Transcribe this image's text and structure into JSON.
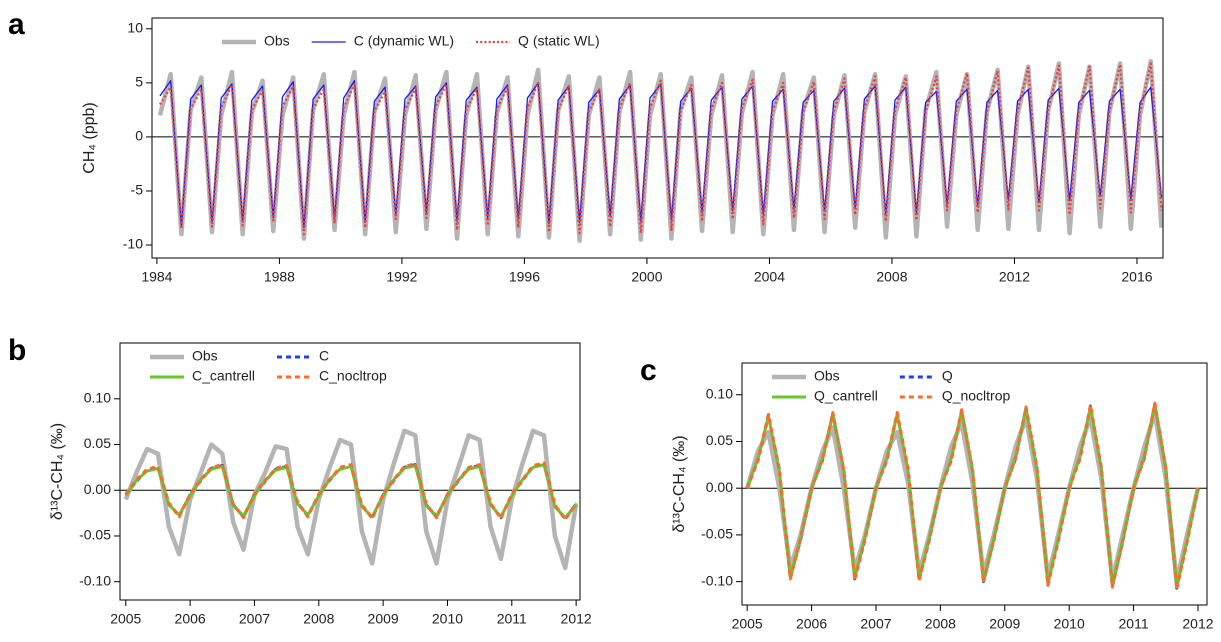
{
  "chart_data": [
    {
      "type": "line",
      "panel_label": "a",
      "ylabel": "CH₄ (ppb)",
      "xlim": [
        1983.84,
        2016.85
      ],
      "xticks": [
        1984,
        1988,
        1992,
        1996,
        2000,
        2004,
        2008,
        2012,
        2016
      ],
      "ylim": [
        -11.2,
        11
      ],
      "yticks": [
        -10,
        -5,
        0,
        5,
        10
      ],
      "legend": {
        "loc": "upper left",
        "ncol": 3
      },
      "x": [
        1984.1,
        1984.45,
        1984.8,
        1985.1,
        1985.45,
        1985.8,
        1986.1,
        1986.45,
        1986.8,
        1987.1,
        1987.45,
        1987.8,
        1988.1,
        1988.45,
        1988.8,
        1989.1,
        1989.45,
        1989.8,
        1990.1,
        1990.45,
        1990.8,
        1991.1,
        1991.45,
        1991.8,
        1992.1,
        1992.45,
        1992.8,
        1993.1,
        1993.45,
        1993.8,
        1994.1,
        1994.45,
        1994.8,
        1995.1,
        1995.45,
        1995.8,
        1996.1,
        1996.45,
        1996.8,
        1997.1,
        1997.45,
        1997.8,
        1998.1,
        1998.45,
        1998.8,
        1999.1,
        1999.45,
        1999.8,
        2000.1,
        2000.45,
        2000.8,
        2001.1,
        2001.45,
        2001.8,
        2002.1,
        2002.45,
        2002.8,
        2003.1,
        2003.45,
        2003.8,
        2004.1,
        2004.45,
        2004.8,
        2005.1,
        2005.45,
        2005.8,
        2006.1,
        2006.45,
        2006.8,
        2007.1,
        2007.45,
        2007.8,
        2008.1,
        2008.45,
        2008.8,
        2009.1,
        2009.45,
        2009.8,
        2010.1,
        2010.45,
        2010.8,
        2011.1,
        2011.45,
        2011.8,
        2012.1,
        2012.45,
        2012.8,
        2013.1,
        2013.45,
        2013.8,
        2014.1,
        2014.45,
        2014.8,
        2015.1,
        2015.45,
        2015.8,
        2016.1,
        2016.45,
        2016.8
      ],
      "series": [
        {
          "name": "Obs",
          "color": "#b4b4b4",
          "style": "thick",
          "values": [
            2,
            5.8,
            -9,
            2.5,
            5.5,
            -8.8,
            2,
            6,
            -9,
            2.2,
            5.2,
            -8.7,
            2,
            5.5,
            -9.4,
            2.5,
            5.8,
            -8.6,
            2,
            6,
            -9,
            2.3,
            5.4,
            -8.8,
            2,
            5.7,
            -8.5,
            2.5,
            6,
            -9.4,
            2,
            5.8,
            -9,
            2.2,
            5.5,
            -9.2,
            2,
            6.2,
            -9.3,
            2.4,
            5.6,
            -9.6,
            2,
            5.5,
            -9,
            2.3,
            6,
            -9.5,
            2,
            5.8,
            -9.4,
            2.5,
            5.5,
            -8.7,
            2,
            5.7,
            -8.8,
            2.2,
            6,
            -9,
            2,
            5.8,
            -8.6,
            2.4,
            5.5,
            -8.8,
            2,
            5.7,
            -8.4,
            2.3,
            5.8,
            -9.3,
            2,
            5.6,
            -9.2,
            2.5,
            6,
            -8.3,
            2,
            5.8,
            -8.6,
            2.3,
            6.2,
            -8.5,
            2,
            6.5,
            -8.6,
            2.4,
            6.8,
            -8.9,
            2,
            6.5,
            -8.3,
            2.3,
            6.8,
            -8.5,
            2,
            7,
            -8.4
          ]
        },
        {
          "name": "C (dynamic WL)",
          "color": "#1a1aee",
          "style": "solid",
          "values": [
            3.8,
            5.2,
            -8.3,
            3.5,
            4.8,
            -8,
            3.6,
            4.9,
            -7.8,
            3.4,
            4.7,
            -7.5,
            3.7,
            5.1,
            -8.4,
            3.5,
            4.8,
            -7.6,
            3.6,
            5.2,
            -7.9,
            3.3,
            4.6,
            -7.2,
            3.5,
            4.7,
            -7,
            3.7,
            5,
            -7.8,
            3.4,
            4.6,
            -7.5,
            3.5,
            4.8,
            -7.6,
            3.6,
            5,
            -8,
            3.4,
            4.7,
            -7.9,
            3.2,
            4.4,
            -7.3,
            3.5,
            4.8,
            -7.8,
            3.6,
            4.9,
            -7.7,
            3.3,
            4.5,
            -7,
            3.4,
            4.6,
            -6.8,
            3.5,
            4.7,
            -7.2,
            3.3,
            4.4,
            -6.7,
            3.2,
            4.3,
            -6.9,
            3.3,
            4.5,
            -6.6,
            3.5,
            4.7,
            -7.1,
            3.4,
            4.6,
            -7,
            3.2,
            4.2,
            -6.2,
            3.3,
            4.4,
            -6.3,
            3.2,
            4.3,
            -5.8,
            3.3,
            4.4,
            -6,
            3.4,
            4.5,
            -5.9,
            3.2,
            4.3,
            -5.5,
            3.3,
            4.4,
            -5.7,
            3.2,
            4.6,
            -5.6
          ]
        },
        {
          "name": "Q (static WL)",
          "color": "#f03c3c",
          "style": "dotted",
          "values": [
            3,
            4.6,
            -8.5,
            2.6,
            4.4,
            -8.3,
            2.7,
            4.8,
            -8.2,
            2.5,
            4.3,
            -7.9,
            2.8,
            4.7,
            -9,
            2.6,
            4.4,
            -8,
            2.7,
            4.9,
            -8.4,
            2.4,
            4.2,
            -7.6,
            2.5,
            4.5,
            -7.5,
            2.8,
            4.9,
            -8.6,
            2.5,
            4.5,
            -8.2,
            2.6,
            4.6,
            -8.4,
            2.7,
            5,
            -8.8,
            2.5,
            4.7,
            -8.9,
            2.3,
            4.4,
            -8.3,
            2.6,
            5,
            -8.9,
            2.7,
            5.2,
            -8.6,
            2.4,
            4.8,
            -7.8,
            2.5,
            5,
            -7.6,
            2.6,
            5.3,
            -8.1,
            2.4,
            5,
            -7.5,
            2.3,
            5.1,
            -7.6,
            2.4,
            5.4,
            -7.2,
            2.6,
            5.6,
            -7.8,
            2.5,
            5.5,
            -7.7,
            2.3,
            5.6,
            -6.8,
            2.4,
            5.9,
            -7,
            2.3,
            6.1,
            -6.7,
            2.4,
            6.4,
            -6.8,
            2.5,
            6.6,
            -7.2,
            2.3,
            6.5,
            -6.6,
            2.4,
            6.7,
            -7,
            2.3,
            6.8,
            -6.8
          ]
        }
      ]
    },
    {
      "type": "line",
      "panel_label": "b",
      "ylabel": "δ¹³C-CH₄ (‰)",
      "xlim": [
        2004.91,
        2012.06
      ],
      "xticks": [
        2005,
        2006,
        2007,
        2008,
        2009,
        2010,
        2011,
        2012
      ],
      "ylim": [
        -0.12,
        0.161
      ],
      "yticks": [
        {
          "value": 0.1,
          "label": "0.10"
        },
        0.05,
        {
          "value": 0,
          "label": "0.00"
        },
        -0.05,
        {
          "value": -0.1,
          "label": "-0.10"
        }
      ],
      "legend": {
        "loc": "upper left",
        "ncol": 2
      },
      "x": [
        2005,
        2005.17,
        2005.33,
        2005.5,
        2005.67,
        2005.83,
        2006,
        2006.17,
        2006.33,
        2006.5,
        2006.67,
        2006.83,
        2007,
        2007.17,
        2007.33,
        2007.5,
        2007.67,
        2007.83,
        2008,
        2008.17,
        2008.33,
        2008.5,
        2008.67,
        2008.83,
        2009,
        2009.17,
        2009.33,
        2009.5,
        2009.67,
        2009.83,
        2010,
        2010.17,
        2010.33,
        2010.5,
        2010.67,
        2010.83,
        2011,
        2011.17,
        2011.33,
        2011.5,
        2011.67,
        2011.83,
        2012
      ],
      "series": [
        {
          "name": "Obs",
          "color": "#b4b4b4",
          "style": "thick",
          "values": [
            -0.01,
            0.02,
            0.045,
            0.04,
            -0.04,
            -0.07,
            -0.01,
            0.02,
            0.05,
            0.04,
            -0.035,
            -0.065,
            -0.005,
            0.02,
            0.048,
            0.045,
            -0.04,
            -0.07,
            -0.01,
            0.025,
            0.055,
            0.05,
            -0.045,
            -0.08,
            -0.01,
            0.03,
            0.065,
            0.06,
            -0.045,
            -0.08,
            -0.01,
            0.025,
            0.06,
            0.055,
            -0.04,
            -0.075,
            -0.01,
            0.03,
            0.065,
            0.06,
            -0.05,
            -0.085,
            -0.015
          ]
        },
        {
          "name": "C",
          "color": "#1f3fef",
          "style": "dashed",
          "values": [
            -0.005,
            0.01,
            0.022,
            0.025,
            -0.015,
            -0.028,
            -0.005,
            0.011,
            0.024,
            0.027,
            -0.016,
            -0.029,
            -0.005,
            0.01,
            0.023,
            0.026,
            -0.014,
            -0.028,
            -0.005,
            0.011,
            0.024,
            0.027,
            -0.017,
            -0.03,
            -0.005,
            0.011,
            0.025,
            0.028,
            -0.016,
            -0.029,
            -0.005,
            0.01,
            0.024,
            0.027,
            -0.015,
            -0.03,
            -0.005,
            0.011,
            0.026,
            0.029,
            -0.017,
            -0.031,
            -0.015
          ]
        },
        {
          "name": "C_cantrell",
          "color": "#66c62a",
          "style": "medium",
          "values": [
            -0.006,
            0.011,
            0.021,
            0.024,
            -0.016,
            -0.027,
            -0.006,
            0.012,
            0.023,
            0.026,
            -0.017,
            -0.028,
            -0.006,
            0.011,
            0.022,
            0.025,
            -0.015,
            -0.027,
            -0.006,
            0.012,
            0.023,
            0.026,
            -0.018,
            -0.029,
            -0.006,
            0.012,
            0.024,
            0.027,
            -0.017,
            -0.028,
            -0.006,
            0.011,
            0.023,
            0.026,
            -0.016,
            -0.029,
            -0.006,
            0.012,
            0.025,
            0.028,
            -0.018,
            -0.03,
            -0.016
          ]
        },
        {
          "name": "C_nocltrop",
          "color": "#ff6a2a",
          "style": "dashed",
          "values": [
            -0.004,
            0.012,
            0.023,
            0.026,
            -0.014,
            -0.029,
            -0.004,
            0.012,
            0.025,
            0.028,
            -0.015,
            -0.03,
            -0.004,
            0.011,
            0.024,
            0.027,
            -0.013,
            -0.029,
            -0.004,
            0.012,
            0.025,
            0.028,
            -0.016,
            -0.031,
            -0.004,
            0.012,
            0.026,
            0.029,
            -0.015,
            -0.03,
            -0.004,
            0.011,
            0.025,
            0.028,
            -0.014,
            -0.031,
            -0.004,
            0.012,
            0.027,
            0.03,
            -0.016,
            -0.032,
            -0.014
          ]
        }
      ]
    },
    {
      "type": "line",
      "panel_label": "c",
      "ylabel": "δ¹³C-CH₄ (‰)",
      "xlim": [
        2004.92,
        2012.14
      ],
      "xticks": [
        2005,
        2006,
        2007,
        2008,
        2009,
        2010,
        2011,
        2012
      ],
      "ylim": [
        -0.125,
        0.134
      ],
      "yticks": [
        {
          "value": 0.1,
          "label": "0.10"
        },
        0.05,
        {
          "value": 0,
          "label": "0.00"
        },
        -0.05,
        {
          "value": -0.1,
          "label": "-0.10"
        }
      ],
      "legend": {
        "loc": "upper left",
        "ncol": 2
      },
      "x": [
        2005,
        2005.17,
        2005.33,
        2005.5,
        2005.67,
        2005.83,
        2006,
        2006.17,
        2006.33,
        2006.5,
        2006.67,
        2006.83,
        2007,
        2007.17,
        2007.33,
        2007.5,
        2007.67,
        2007.83,
        2008,
        2008.17,
        2008.33,
        2008.5,
        2008.67,
        2008.83,
        2009,
        2009.17,
        2009.33,
        2009.5,
        2009.67,
        2009.83,
        2010,
        2010.17,
        2010.33,
        2010.5,
        2010.67,
        2010.83,
        2011,
        2011.17,
        2011.33,
        2011.5,
        2011.67,
        2011.83,
        2012
      ],
      "series": [
        {
          "name": "Obs",
          "color": "#b4b4b4",
          "style": "thick",
          "values": [
            0,
            0.04,
            0.06,
            0,
            -0.085,
            -0.05,
            0,
            0.04,
            0.065,
            0,
            -0.088,
            -0.05,
            0,
            0.04,
            0.06,
            0.005,
            -0.09,
            -0.05,
            0,
            0.045,
            0.07,
            0.005,
            -0.092,
            -0.05,
            0,
            0.045,
            0.075,
            0.01,
            -0.095,
            -0.05,
            0,
            0.045,
            0.075,
            0.01,
            -0.098,
            -0.05,
            0,
            0.045,
            0.08,
            0.01,
            -0.1,
            -0.05,
            0
          ]
        },
        {
          "name": "Q",
          "color": "#1f3fef",
          "style": "dashed",
          "values": [
            0,
            0.03,
            0.078,
            0.02,
            -0.096,
            -0.055,
            0,
            0.03,
            0.08,
            0.02,
            -0.097,
            -0.055,
            0,
            0.03,
            0.08,
            0.02,
            -0.098,
            -0.055,
            0,
            0.03,
            0.083,
            0.02,
            -0.1,
            -0.056,
            0,
            0.032,
            0.086,
            0.022,
            -0.103,
            -0.057,
            0,
            0.032,
            0.088,
            0.022,
            -0.105,
            -0.058,
            0,
            0.033,
            0.09,
            0.022,
            -0.107,
            -0.058,
            0
          ]
        },
        {
          "name": "Q_cantrell",
          "color": "#66c62a",
          "style": "medium",
          "values": [
            0,
            0.032,
            0.077,
            0.018,
            -0.095,
            -0.053,
            0,
            0.032,
            0.079,
            0.018,
            -0.096,
            -0.053,
            0,
            0.032,
            0.079,
            0.018,
            -0.097,
            -0.053,
            0,
            0.032,
            0.082,
            0.018,
            -0.099,
            -0.054,
            0,
            0.034,
            0.085,
            0.02,
            -0.102,
            -0.055,
            0,
            0.034,
            0.087,
            0.02,
            -0.104,
            -0.056,
            0,
            0.035,
            0.089,
            0.02,
            -0.106,
            -0.056,
            0
          ]
        },
        {
          "name": "Q_nocltrop",
          "color": "#ff6a2a",
          "style": "dashed",
          "values": [
            0,
            0.031,
            0.079,
            0.019,
            -0.097,
            -0.054,
            0,
            0.031,
            0.081,
            0.019,
            -0.098,
            -0.054,
            0,
            0.031,
            0.081,
            0.019,
            -0.099,
            -0.054,
            0,
            0.031,
            0.084,
            0.019,
            -0.101,
            -0.055,
            0,
            0.033,
            0.087,
            0.021,
            -0.104,
            -0.056,
            0,
            0.033,
            0.089,
            0.021,
            -0.106,
            -0.057,
            0,
            0.034,
            0.091,
            0.021,
            -0.108,
            -0.057,
            0
          ]
        }
      ]
    }
  ]
}
